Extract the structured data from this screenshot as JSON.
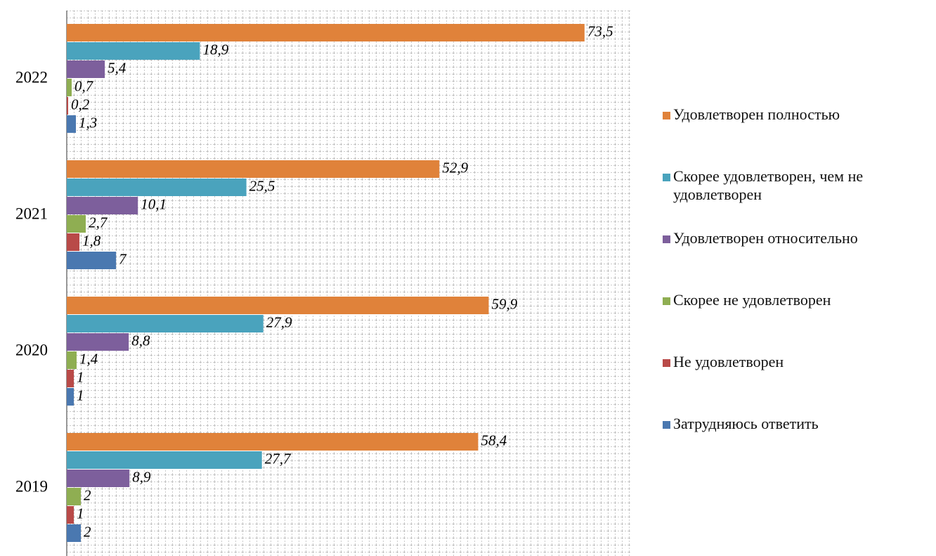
{
  "chart_data": {
    "type": "hbar",
    "categories": [
      "2022",
      "2021",
      "2020",
      "2019"
    ],
    "series": [
      {
        "name": "Удовлетворен полностью",
        "color": "#e0823a",
        "values": [
          73.5,
          52.9,
          59.9,
          58.4
        ],
        "value_labels": [
          "73,5",
          "52,9",
          "59,9",
          "58,4"
        ]
      },
      {
        "name": "Скорее удовлетворен, чем не удовлетворен",
        "color": "#4aa3bd",
        "values": [
          18.9,
          25.5,
          27.9,
          27.7
        ],
        "value_labels": [
          "18,9",
          "25,5",
          "27,9",
          "27,7"
        ]
      },
      {
        "name": "Удовлетворен относительно",
        "color": "#7d5f9c",
        "values": [
          5.4,
          10.1,
          8.8,
          8.9
        ],
        "value_labels": [
          "5,4",
          "10,1",
          "8,8",
          "8,9"
        ]
      },
      {
        "name": "Скорее не удовлетворен",
        "color": "#8fae52",
        "values": [
          0.7,
          2.7,
          1.4,
          2
        ],
        "value_labels": [
          "0,7",
          "2,7",
          "1,4",
          "2"
        ]
      },
      {
        "name": "Не удовлетворен",
        "color": "#b94a48",
        "values": [
          0.2,
          1.8,
          1,
          1
        ],
        "value_labels": [
          "0,2",
          "1,8",
          "1",
          "1"
        ]
      },
      {
        "name": "Затрудняюсь ответить",
        "color": "#4a78b0",
        "values": [
          1.3,
          7,
          1,
          2
        ],
        "value_labels": [
          "1,3",
          "7",
          "1",
          "2"
        ]
      }
    ],
    "xlim": [
      0,
      80
    ],
    "grid": true
  }
}
